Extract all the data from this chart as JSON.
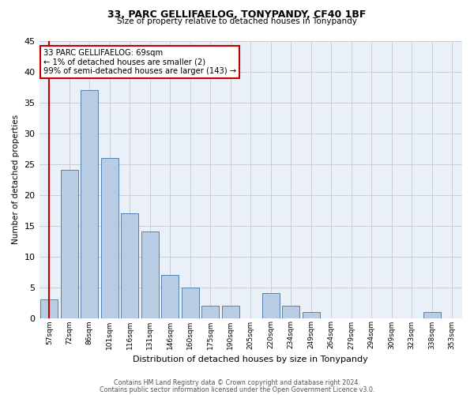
{
  "title": "33, PARC GELLIFAELOG, TONYPANDY, CF40 1BF",
  "subtitle": "Size of property relative to detached houses in Tonypandy",
  "xlabel": "Distribution of detached houses by size in Tonypandy",
  "ylabel": "Number of detached properties",
  "categories": [
    "57sqm",
    "72sqm",
    "86sqm",
    "101sqm",
    "116sqm",
    "131sqm",
    "146sqm",
    "160sqm",
    "175sqm",
    "190sqm",
    "205sqm",
    "220sqm",
    "234sqm",
    "249sqm",
    "264sqm",
    "279sqm",
    "294sqm",
    "309sqm",
    "323sqm",
    "338sqm",
    "353sqm"
  ],
  "values": [
    3,
    24,
    37,
    26,
    17,
    14,
    7,
    5,
    2,
    2,
    0,
    4,
    2,
    1,
    0,
    0,
    0,
    0,
    0,
    1,
    0
  ],
  "bar_color": "#b8cce4",
  "bar_edge_color": "#5580b0",
  "highlight_line_color": "#c00000",
  "annotation_text": "33 PARC GELLIFAELOG: 69sqm\n← 1% of detached houses are smaller (2)\n99% of semi-detached houses are larger (143) →",
  "annotation_box_color": "#ffffff",
  "annotation_box_edge_color": "#c00000",
  "ylim": [
    0,
    45
  ],
  "yticks": [
    0,
    5,
    10,
    15,
    20,
    25,
    30,
    35,
    40,
    45
  ],
  "background_color": "#ffffff",
  "plot_bg_color": "#eaf0f8",
  "grid_color": "#c8c8c8",
  "footer_line1": "Contains HM Land Registry data © Crown copyright and database right 2024.",
  "footer_line2": "Contains public sector information licensed under the Open Government Licence v3.0."
}
